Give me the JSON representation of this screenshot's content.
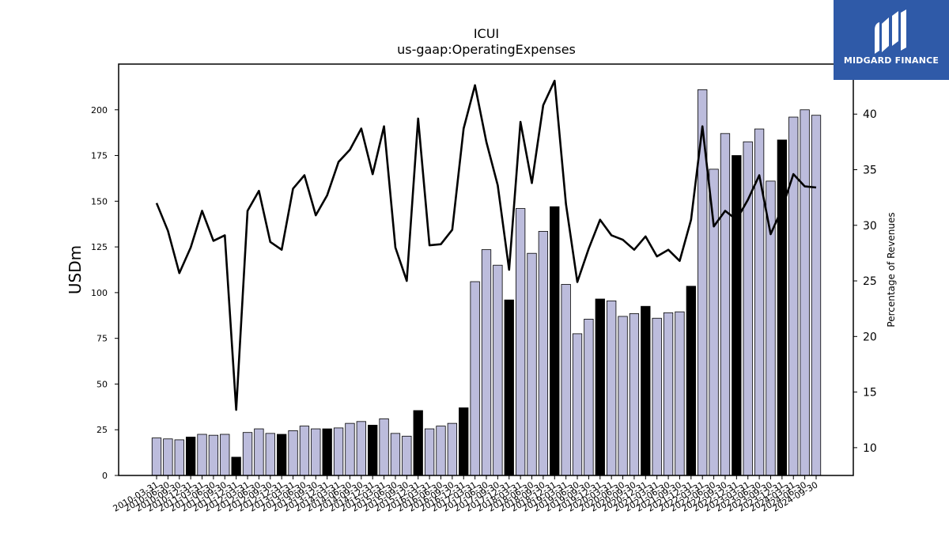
{
  "chart_data": {
    "type": "bar",
    "title": "ICUI",
    "subtitle": "us-gaap:OperatingExpenses",
    "ylabel": "USDm",
    "y2label": "Percentage of Revenues",
    "ylim": [
      0,
      225
    ],
    "y2lim": [
      7.5,
      44.5
    ],
    "yticks": [
      0,
      25,
      50,
      75,
      100,
      125,
      150,
      175,
      200
    ],
    "y2ticks": [
      10,
      15,
      20,
      25,
      30,
      35,
      40
    ],
    "bar_fill": "#bcbcdc",
    "bar_highlight_fill": "#000000",
    "line_color": "#000000",
    "categories": [
      "2010-03-31",
      "2010-06-30",
      "2010-09-30",
      "2010-12-31",
      "2011-03-31",
      "2011-06-30",
      "2011-09-30",
      "2011-12-31",
      "2012-03-31",
      "2012-06-30",
      "2012-09-30",
      "2012-12-31",
      "2013-03-31",
      "2013-06-30",
      "2013-09-30",
      "2013-12-31",
      "2014-03-31",
      "2014-06-30",
      "2014-09-30",
      "2014-12-31",
      "2015-03-31",
      "2015-06-30",
      "2015-09-30",
      "2015-12-31",
      "2016-03-31",
      "2016-06-30",
      "2016-09-30",
      "2016-12-31",
      "2017-03-31",
      "2017-06-30",
      "2017-09-30",
      "2017-12-31",
      "2018-03-31",
      "2018-06-30",
      "2018-09-30",
      "2018-12-31",
      "2019-03-31",
      "2019-06-30",
      "2019-09-30",
      "2019-12-31",
      "2020-03-31",
      "2020-06-30",
      "2020-09-30",
      "2020-12-31",
      "2021-03-31",
      "2021-06-30",
      "2021-09-30",
      "2021-12-31",
      "2022-03-31",
      "2022-06-30",
      "2022-09-30",
      "2022-12-31",
      "2023-03-31",
      "2023-06-30",
      "2023-09-30",
      "2023-12-31",
      "2024-03-31",
      "2024-06-30",
      "2024-09-30"
    ],
    "highlight_indices": [
      3,
      7,
      11,
      15,
      19,
      23,
      27,
      31,
      35,
      39,
      43,
      47,
      51,
      55
    ],
    "series": [
      {
        "name": "OperatingExpenses",
        "type": "bar",
        "values": [
          20.5,
          20.0,
          19.5,
          21.0,
          22.5,
          22.0,
          22.5,
          10.0,
          23.5,
          25.5,
          23.0,
          22.5,
          24.5,
          27.0,
          25.5,
          25.5,
          26.0,
          28.5,
          29.5,
          27.5,
          31.0,
          23.0,
          21.5,
          35.5,
          25.5,
          27.0,
          28.5,
          37.0,
          106.0,
          123.5,
          115.0,
          96.0,
          146.0,
          121.5,
          133.5,
          147.0,
          104.5,
          77.5,
          85.5,
          96.5,
          95.5,
          87.0,
          88.5,
          92.5,
          86.0,
          89.0,
          89.5,
          103.5,
          211.0,
          167.5,
          187.0,
          175.0,
          182.5,
          189.5,
          161.0,
          183.5,
          196.0,
          200.0,
          197.0
        ]
      },
      {
        "name": "Percentage of Revenues",
        "type": "line",
        "axis": "right",
        "values": [
          32.0,
          29.5,
          25.7,
          28.0,
          31.3,
          28.6,
          29.1,
          13.4,
          31.3,
          33.1,
          28.5,
          27.8,
          33.3,
          34.5,
          30.9,
          32.7,
          35.7,
          36.8,
          38.7,
          34.6,
          38.9,
          28.0,
          25.0,
          39.6,
          28.2,
          28.3,
          29.6,
          38.7,
          42.6,
          37.5,
          33.6,
          26.0,
          39.3,
          33.8,
          40.8,
          43.0,
          31.9,
          24.9,
          27.9,
          30.5,
          29.1,
          28.7,
          27.8,
          29.0,
          27.2,
          27.8,
          26.8,
          30.5,
          38.9,
          29.9,
          31.3,
          30.5,
          32.3,
          34.5,
          29.2,
          31.5,
          34.6,
          33.5,
          33.4
        ]
      }
    ]
  },
  "logo": {
    "text": "MIDGARD FINANCE",
    "bg_color": "#2f5aa8",
    "icon": "midgard-logo-icon"
  }
}
